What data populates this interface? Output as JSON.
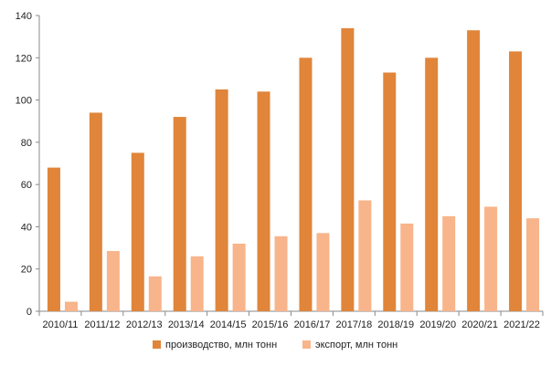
{
  "chart_data": {
    "type": "bar",
    "categories": [
      "2010/11",
      "2011/12",
      "2012/13",
      "2013/14",
      "2014/15",
      "2015/16",
      "2016/17",
      "2017/18",
      "2018/19",
      "2019/20",
      "2020/21",
      "2021/22"
    ],
    "series": [
      {
        "name": "производство, млн тонн",
        "color": "#E0853A",
        "values": [
          68,
          94,
          75,
          92,
          105,
          104,
          120,
          134,
          113,
          120,
          133,
          123
        ]
      },
      {
        "name": "экспорт, млн тонн",
        "color": "#F8B48A",
        "values": [
          4.5,
          28.5,
          16.5,
          26,
          32,
          35.5,
          37,
          52.5,
          41.5,
          45,
          49.5,
          44
        ]
      }
    ],
    "yticks": [
      "0",
      "20",
      "40",
      "60",
      "80",
      "100",
      "120",
      "140"
    ],
    "ylim": [
      0,
      140
    ],
    "title": "",
    "xlabel": "",
    "ylabel": "",
    "grid": false,
    "legend_position": "bottom"
  }
}
